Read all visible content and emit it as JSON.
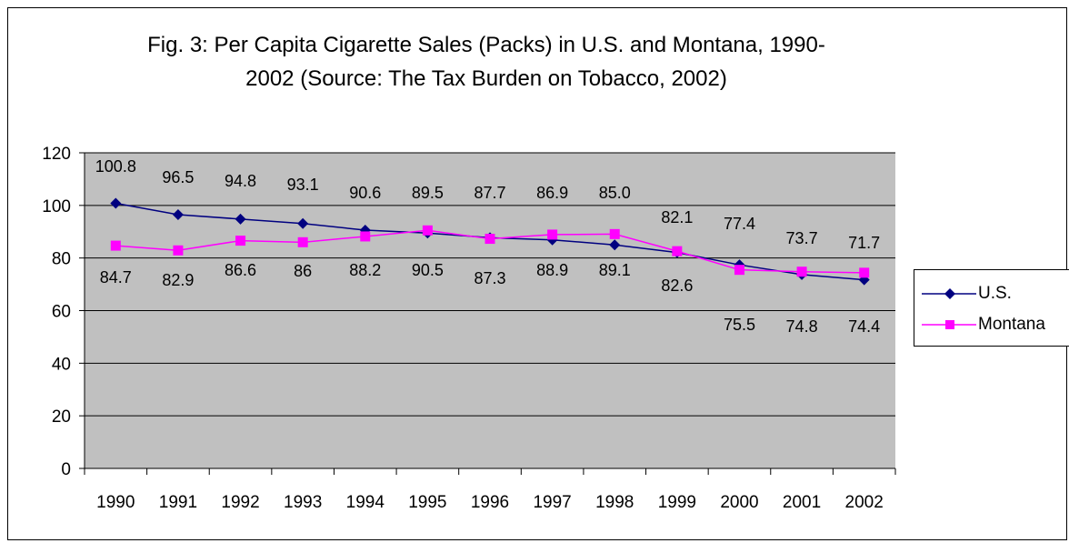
{
  "chart_data": {
    "type": "line",
    "title_lines": [
      "Fig. 3: Per Capita Cigarette Sales (Packs) in U.S. and Montana, 1990-",
      "2002 (Source: The Tax Burden on Tobacco, 2002)"
    ],
    "categories": [
      "1990",
      "1991",
      "1992",
      "1993",
      "1994",
      "1995",
      "1996",
      "1997",
      "1998",
      "1999",
      "2000",
      "2001",
      "2002"
    ],
    "y_ticks": [
      "0",
      "20",
      "40",
      "60",
      "80",
      "100",
      "120"
    ],
    "ylim": [
      0,
      120
    ],
    "grid": "horizontal",
    "legend_position": "right",
    "plot_background": "#c0c0c0",
    "series": [
      {
        "name": "U.S.",
        "color": "#000080",
        "marker": "diamond",
        "values": [
          100.8,
          96.5,
          94.8,
          93.1,
          90.6,
          89.5,
          87.7,
          86.9,
          85.0,
          82.1,
          77.4,
          73.7,
          71.7
        ],
        "labels": [
          "100.8",
          "96.5",
          "94.8",
          "93.1",
          "90.6",
          "89.5",
          "87.7",
          "86.9",
          "85.0",
          "82.1",
          "77.4",
          "73.7",
          "71.7"
        ]
      },
      {
        "name": "Montana",
        "color": "#ff00ff",
        "marker": "square",
        "values": [
          84.7,
          82.9,
          86.6,
          86,
          88.2,
          90.5,
          87.3,
          88.9,
          89.1,
          82.6,
          75.5,
          74.8,
          74.4
        ],
        "labels": [
          "84.7",
          "82.9",
          "86.6",
          "86",
          "88.2",
          "90.5",
          "87.3",
          "88.9",
          "89.1",
          "82.6",
          "75.5",
          "74.8",
          "74.4"
        ]
      }
    ]
  }
}
